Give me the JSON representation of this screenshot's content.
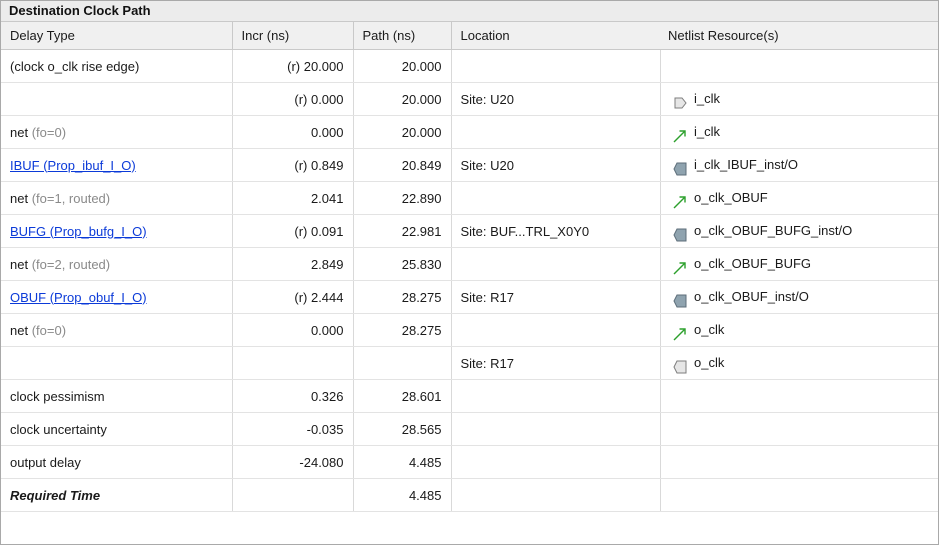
{
  "section_title": "Destination Clock Path",
  "columns": [
    "Delay Type",
    "Incr (ns)",
    "Path (ns)",
    "Location",
    "Netlist Resource(s)"
  ],
  "rows": [
    {
      "type": "(clock o_clk rise edge)",
      "type_link": false,
      "fo": "",
      "incr": "(r) 20.000",
      "path": "20.000",
      "location": "",
      "icon": "",
      "resource": ""
    },
    {
      "type": "",
      "type_link": false,
      "fo": "",
      "incr": "(r) 0.000",
      "path": "20.000",
      "location": "Site: U20",
      "icon": "port-icon",
      "resource": "i_clk"
    },
    {
      "type": "net",
      "type_link": false,
      "fo": "(fo=0)",
      "incr": "0.000",
      "path": "20.000",
      "location": "",
      "icon": "net-icon",
      "resource": "i_clk"
    },
    {
      "type": "IBUF (Prop_ibuf_I_O)",
      "type_link": true,
      "fo": "",
      "incr": "(r) 0.849",
      "path": "20.849",
      "location": "Site: U20",
      "icon": "cell-pin-icon",
      "resource": "i_clk_IBUF_inst/O"
    },
    {
      "type": "net",
      "type_link": false,
      "fo": "(fo=1, routed)",
      "incr": "2.041",
      "path": "22.890",
      "location": "",
      "icon": "net-icon",
      "resource": "o_clk_OBUF"
    },
    {
      "type": "BUFG (Prop_bufg_I_O)",
      "type_link": true,
      "fo": "",
      "incr": "(r) 0.091",
      "path": "22.981",
      "location": "Site: BUF...TRL_X0Y0",
      "icon": "cell-pin-icon",
      "resource": "o_clk_OBUF_BUFG_inst/O"
    },
    {
      "type": "net",
      "type_link": false,
      "fo": "(fo=2, routed)",
      "incr": "2.849",
      "path": "25.830",
      "location": "",
      "icon": "net-icon",
      "resource": "o_clk_OBUF_BUFG"
    },
    {
      "type": "OBUF (Prop_obuf_I_O)",
      "type_link": true,
      "fo": "",
      "incr": "(r) 2.444",
      "path": "28.275",
      "location": "Site: R17",
      "icon": "cell-pin-icon",
      "resource": "o_clk_OBUF_inst/O"
    },
    {
      "type": "net",
      "type_link": false,
      "fo": "(fo=0)",
      "incr": "0.000",
      "path": "28.275",
      "location": "",
      "icon": "net-icon",
      "resource": "o_clk"
    },
    {
      "type": "",
      "type_link": false,
      "fo": "",
      "incr": "",
      "path": "",
      "location": "Site: R17",
      "icon": "output-port-icon",
      "resource": "o_clk"
    },
    {
      "type": "clock pessimism",
      "type_link": false,
      "fo": "",
      "incr": "0.326",
      "path": "28.601",
      "location": "",
      "icon": "",
      "resource": ""
    },
    {
      "type": "clock uncertainty",
      "type_link": false,
      "fo": "",
      "incr": "-0.035",
      "path": "28.565",
      "location": "",
      "icon": "",
      "resource": ""
    },
    {
      "type": "output delay",
      "type_link": false,
      "fo": "",
      "incr": "-24.080",
      "path": "4.485",
      "location": "",
      "icon": "",
      "resource": ""
    },
    {
      "type": "Required Time",
      "type_link": false,
      "type_bold": true,
      "fo": "",
      "incr": "",
      "path": "4.485",
      "location": "",
      "icon": "",
      "resource": ""
    }
  ],
  "colors": {
    "link": "#0b3ad8",
    "net_icon": "#2ca02c",
    "cell_icon": "#5d6e7a",
    "fo_text": "#8a8a8a",
    "header_bg": "#f0f0f0"
  }
}
